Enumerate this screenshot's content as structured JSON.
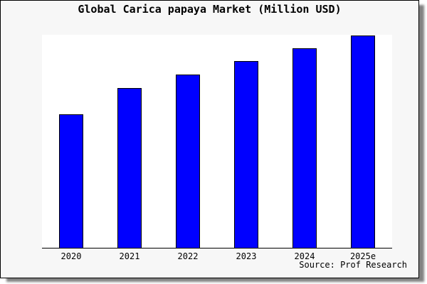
{
  "chart_data": {
    "type": "bar",
    "title": "Global Carica papaya Market (Million USD)",
    "categories": [
      "2020",
      "2021",
      "2022",
      "2023",
      "2024",
      "2025e"
    ],
    "values_pct_of_max": [
      62.8,
      75.3,
      81.6,
      87.9,
      93.9,
      100
    ],
    "xlabel": "",
    "ylabel": "",
    "y_axis_tick_labels": "none shown",
    "legend": "none",
    "grid": "off",
    "bar_color": "#0000ff",
    "bar_border_color": "#000000"
  },
  "source_note": "Source: Prof Research",
  "colors": {
    "canvas_bg": "#f7f7f7",
    "plot_bg": "#ffffff",
    "bar_fill": "#0000ff",
    "axis": "#000000",
    "frame_border": "#000000",
    "shadow": "#828282",
    "text": "#000000"
  }
}
